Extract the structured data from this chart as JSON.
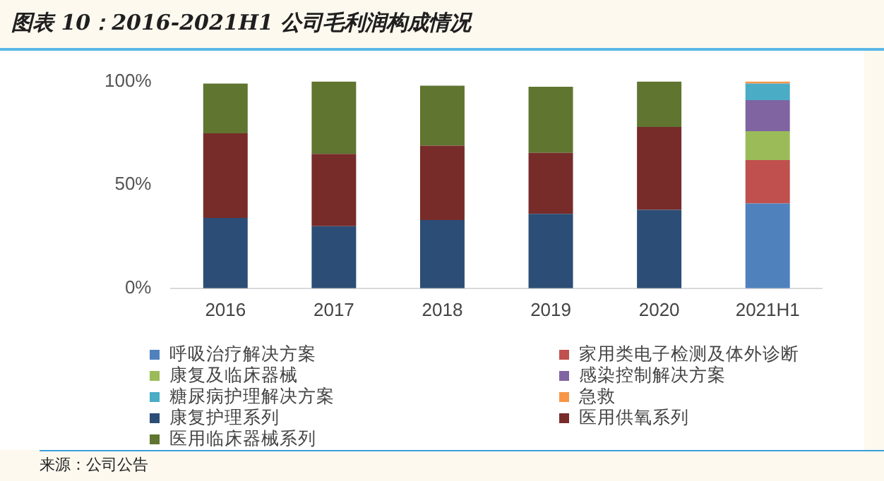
{
  "chart_data": {
    "type": "bar",
    "title": "图表 10：2016-2021H1 公司毛利润构成情况",
    "categories": [
      "2016",
      "2017",
      "2018",
      "2019",
      "2020",
      "2021H1"
    ],
    "stacked": true,
    "series": [
      {
        "name": "呼吸治疗解决方案",
        "color": "#4f81bd",
        "values": [
          null,
          null,
          null,
          null,
          null,
          41
        ]
      },
      {
        "name": "家用类电子检测及体外诊断",
        "color": "#c0504d",
        "values": [
          null,
          null,
          null,
          null,
          null,
          21
        ]
      },
      {
        "name": "康复及临床器械",
        "color": "#9bbb59",
        "values": [
          null,
          null,
          null,
          null,
          null,
          14
        ]
      },
      {
        "name": "感染控制解决方案",
        "color": "#8064a2",
        "values": [
          null,
          null,
          null,
          null,
          null,
          15
        ]
      },
      {
        "name": "糖尿病护理解决方案",
        "color": "#4bacc6",
        "values": [
          null,
          null,
          null,
          null,
          null,
          8
        ]
      },
      {
        "name": "急救",
        "color": "#f79646",
        "values": [
          null,
          null,
          null,
          null,
          null,
          1
        ]
      },
      {
        "name": "康复护理系列",
        "color": "#2c4d75",
        "values": [
          34,
          30,
          33,
          36,
          38,
          null
        ]
      },
      {
        "name": "医用供氧系列",
        "color": "#772c2a",
        "values": [
          41,
          35,
          36,
          29.5,
          40,
          null
        ]
      },
      {
        "name": "医用临床器械系列",
        "color": "#5f7530",
        "values": [
          24,
          35,
          29,
          32,
          22,
          null
        ]
      }
    ],
    "ylim": [
      0,
      100
    ],
    "yticks": [
      {
        "value": 0,
        "label": "0%"
      },
      {
        "value": 50,
        "label": "50%"
      },
      {
        "value": 100,
        "label": "100%"
      }
    ],
    "grid": false,
    "legend": "bottom",
    "annotations": [
      "来源：公司公告"
    ]
  }
}
